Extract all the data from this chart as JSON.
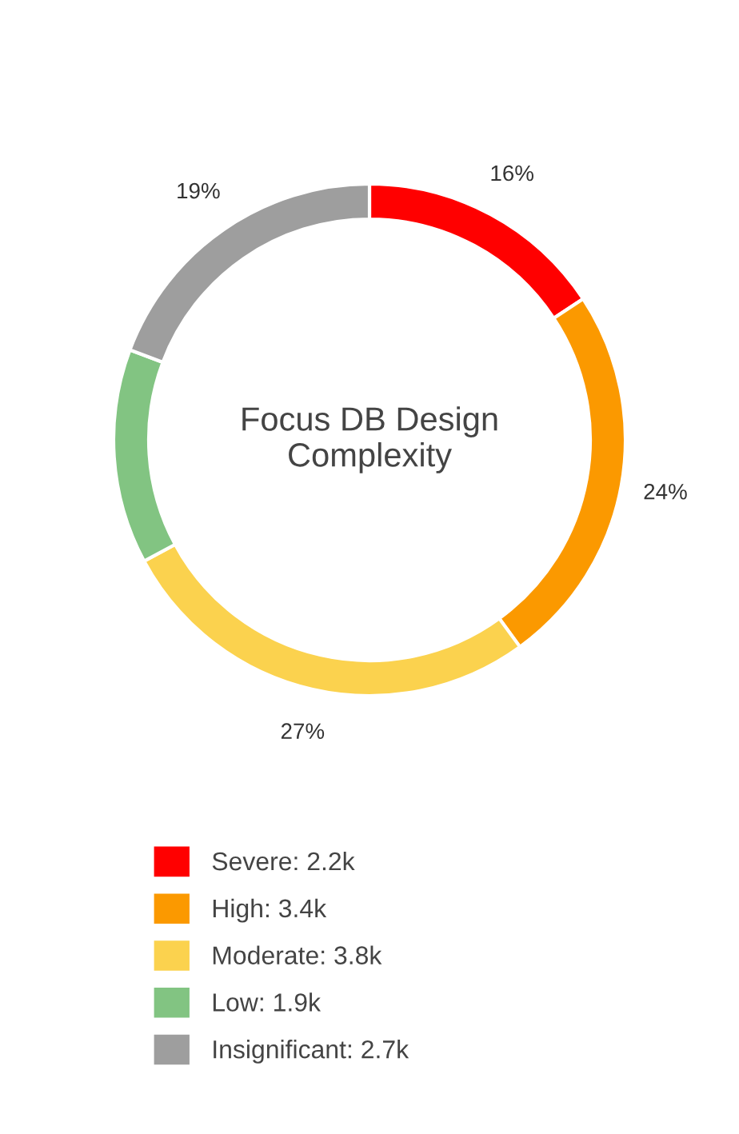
{
  "chart_data": {
    "type": "donut",
    "title": "Focus DB Design\nComplexity",
    "categories": [
      "Severe: 2.2k",
      "High: 3.4k",
      "Moderate: 3.8k",
      "Low: 1.9k",
      "Insignificant: 2.7k"
    ],
    "values": [
      2.2,
      3.4,
      3.8,
      1.9,
      2.7
    ],
    "colors": [
      "#ff0000",
      "#fb9900",
      "#fbd24e",
      "#82c482",
      "#9e9e9e"
    ],
    "annotations": [
      {
        "text": "16%",
        "x": "Severe: 2.2k"
      },
      {
        "text": "24%",
        "x": "High: 3.4k"
      },
      {
        "text": "27%",
        "x": "Moderate: 3.8k"
      },
      {
        "text": "19%",
        "x": "Insignificant: 2.7k"
      }
    ],
    "legend": "bottom"
  }
}
